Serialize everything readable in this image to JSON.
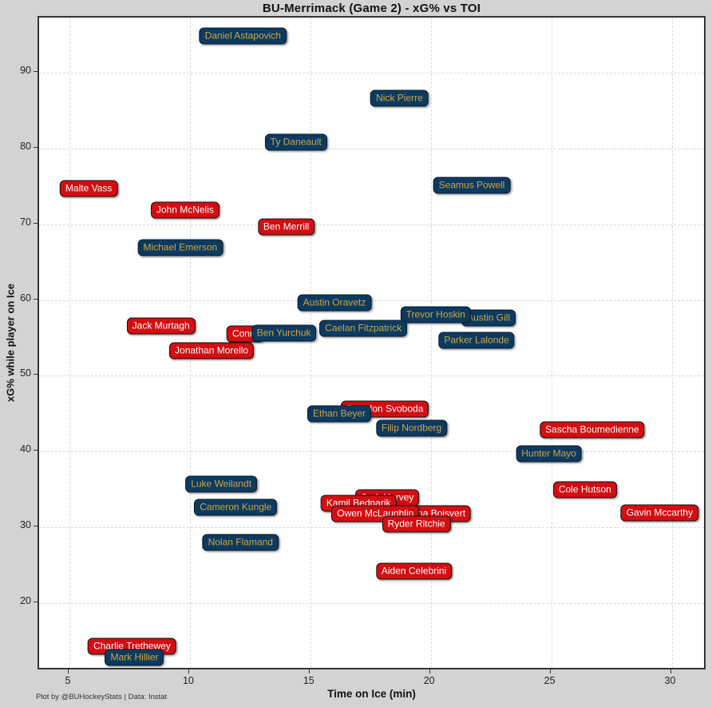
{
  "title": "BU-Merrimack (Game 2) - xG% vs TOI",
  "footer": "Plot by @BUHockeyStats | Data: Instat",
  "colors": {
    "background": "#d3d3d3",
    "plot_background": "#ffffff",
    "plot_border": "#333333",
    "gridline": "#dadada",
    "red_box_fill": "#d40d11",
    "red_box_text": "#ffffff",
    "navy_box_fill": "#0c3a60",
    "navy_box_text": "#d2a63e"
  },
  "chart_data": {
    "type": "scatter",
    "title": "BU-Merrimack (Game 2) - xG% vs TOI",
    "xlabel": "Time on Ice (min)",
    "ylabel": "xG% while player on Ice",
    "xlim": [
      3.75,
      31.5
    ],
    "ylim": [
      10.7,
      97.3
    ],
    "x_ticks": [
      5,
      10,
      15,
      20,
      25,
      30
    ],
    "y_ticks": [
      20,
      30,
      40,
      50,
      60,
      70,
      80,
      90
    ],
    "grid": true,
    "legend_position": "none",
    "marker_style": "rounded label box at each data point",
    "groups": [
      {
        "id": "red",
        "fill": "#d40d11",
        "text": "#ffffff"
      },
      {
        "id": "navy",
        "fill": "#0c3a60",
        "text": "#d2a63e"
      }
    ],
    "points": [
      {
        "label": "Daniel Astapovich",
        "group": "navy",
        "toi_min": 12.2,
        "xg_pct": 94.8
      },
      {
        "label": "Nick Pierre",
        "group": "navy",
        "toi_min": 18.7,
        "xg_pct": 86.6
      },
      {
        "label": "Ty Daneault",
        "group": "navy",
        "toi_min": 14.4,
        "xg_pct": 80.8
      },
      {
        "label": "Malte Vass",
        "group": "red",
        "toi_min": 5.8,
        "xg_pct": 74.7
      },
      {
        "label": "Seamus Powell",
        "group": "navy",
        "toi_min": 21.7,
        "xg_pct": 75.1
      },
      {
        "label": "John McNelis",
        "group": "red",
        "toi_min": 9.8,
        "xg_pct": 71.9
      },
      {
        "label": "Ben Merrill",
        "group": "red",
        "toi_min": 14.0,
        "xg_pct": 69.7
      },
      {
        "label": "Michael Emerson",
        "group": "navy",
        "toi_min": 9.6,
        "xg_pct": 66.9
      },
      {
        "label": "Austin Oravetz",
        "group": "navy",
        "toi_min": 16.0,
        "xg_pct": 59.6
      },
      {
        "label": "Austin Gill",
        "group": "navy",
        "toi_min": 22.4,
        "xg_pct": 57.6
      },
      {
        "label": "Trevor Hoskin",
        "group": "navy",
        "toi_min": 20.2,
        "xg_pct": 58.1
      },
      {
        "label": "Jack Murtagh",
        "group": "red",
        "toi_min": 8.8,
        "xg_pct": 56.6
      },
      {
        "label": "Conra",
        "group": "red",
        "toi_min": 12.3,
        "xg_pct": 55.5
      },
      {
        "label": "Ben Yurchuk",
        "group": "navy",
        "toi_min": 13.9,
        "xg_pct": 55.6
      },
      {
        "label": "Caelan Fitzpatrick",
        "group": "navy",
        "toi_min": 17.2,
        "xg_pct": 56.3
      },
      {
        "label": "Parker Lalonde",
        "group": "navy",
        "toi_min": 21.9,
        "xg_pct": 54.7
      },
      {
        "label": "Jonathan Morello",
        "group": "red",
        "toi_min": 10.9,
        "xg_pct": 53.3
      },
      {
        "label": "Brandon Svoboda",
        "group": "red",
        "toi_min": 18.1,
        "xg_pct": 45.6
      },
      {
        "label": "Ethan Beyer",
        "group": "navy",
        "toi_min": 16.2,
        "xg_pct": 45.0
      },
      {
        "label": "Filip Nordberg",
        "group": "navy",
        "toi_min": 19.2,
        "xg_pct": 43.1
      },
      {
        "label": "Sascha Boumedienne",
        "group": "red",
        "toi_min": 26.7,
        "xg_pct": 42.9
      },
      {
        "label": "Hunter Mayo",
        "group": "navy",
        "toi_min": 24.9,
        "xg_pct": 39.7
      },
      {
        "label": "Luke Weilandt",
        "group": "navy",
        "toi_min": 11.3,
        "xg_pct": 35.7
      },
      {
        "label": "Cole Hutson",
        "group": "red",
        "toi_min": 26.4,
        "xg_pct": 35.0
      },
      {
        "label": "Jack Harvey",
        "group": "red",
        "toi_min": 18.2,
        "xg_pct": 33.9
      },
      {
        "label": "Kamil Bednarik",
        "group": "red",
        "toi_min": 17.0,
        "xg_pct": 33.2
      },
      {
        "label": "Cameron Kungle",
        "group": "navy",
        "toi_min": 11.9,
        "xg_pct": 32.6
      },
      {
        "label": "Sacha Boisvert",
        "group": "red",
        "toi_min": 20.1,
        "xg_pct": 31.8
      },
      {
        "label": "Owen McLaughlin",
        "group": "red",
        "toi_min": 17.7,
        "xg_pct": 31.8
      },
      {
        "label": "Ryder Ritchie",
        "group": "red",
        "toi_min": 19.4,
        "xg_pct": 30.4
      },
      {
        "label": "Gavin Mccarthy",
        "group": "red",
        "toi_min": 29.5,
        "xg_pct": 31.9
      },
      {
        "label": "Nolan Flamand",
        "group": "navy",
        "toi_min": 12.1,
        "xg_pct": 28.0
      },
      {
        "label": "Aiden Celebrini",
        "group": "red",
        "toi_min": 19.3,
        "xg_pct": 24.2
      },
      {
        "label": "Charlie Trethewey",
        "group": "red",
        "toi_min": 7.6,
        "xg_pct": 14.3
      },
      {
        "label": "Mark Hillier",
        "group": "navy",
        "toi_min": 7.7,
        "xg_pct": 12.8
      }
    ]
  }
}
